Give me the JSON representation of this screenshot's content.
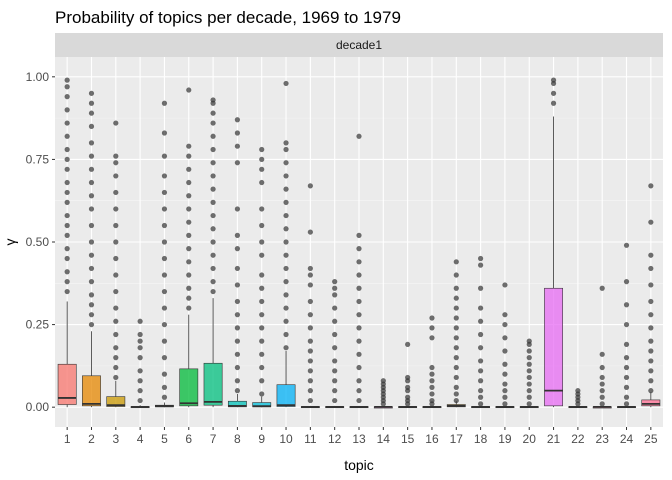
{
  "chart_data": {
    "type": "boxplot",
    "title": "Probability of topics per decade, 1969 to 1979",
    "facet_label": "decade1",
    "xlabel": "topic",
    "ylabel": "γ",
    "ylim": [
      0,
      1
    ],
    "y_ticks": [
      "0.00",
      "0.25",
      "0.50",
      "0.75",
      "1.00"
    ],
    "y_tick_values": [
      0,
      0.25,
      0.5,
      0.75,
      1.0
    ],
    "grid": true,
    "categories": [
      "1",
      "2",
      "3",
      "4",
      "5",
      "6",
      "7",
      "8",
      "9",
      "10",
      "11",
      "12",
      "13",
      "14",
      "15",
      "16",
      "17",
      "18",
      "19",
      "20",
      "21",
      "22",
      "23",
      "24",
      "25"
    ],
    "boxes": [
      {
        "topic": "1",
        "color": "#F8766D",
        "q1": 0.008,
        "median": 0.028,
        "q3": 0.13,
        "whisker_low": 0,
        "whisker_high": 0.32,
        "outliers": [
          0.35,
          0.38,
          0.41,
          0.45,
          0.48,
          0.52,
          0.55,
          0.58,
          0.62,
          0.65,
          0.68,
          0.72,
          0.75,
          0.78,
          0.82,
          0.86,
          0.9,
          0.94,
          0.97,
          0.99
        ]
      },
      {
        "topic": "2",
        "color": "#E58700",
        "q1": 0.004,
        "median": 0.01,
        "q3": 0.095,
        "whisker_low": 0,
        "whisker_high": 0.23,
        "outliers": [
          0.25,
          0.28,
          0.31,
          0.34,
          0.38,
          0.42,
          0.46,
          0.5,
          0.55,
          0.6,
          0.64,
          0.68,
          0.72,
          0.76,
          0.8,
          0.85,
          0.89,
          0.92,
          0.95
        ]
      },
      {
        "topic": "3",
        "color": "#C99800",
        "q1": 0.002,
        "median": 0.006,
        "q3": 0.032,
        "whisker_low": 0,
        "whisker_high": 0.08,
        "outliers": [
          0.09,
          0.12,
          0.15,
          0.18,
          0.22,
          0.26,
          0.3,
          0.35,
          0.4,
          0.45,
          0.5,
          0.55,
          0.6,
          0.65,
          0.7,
          0.74,
          0.76,
          0.86
        ]
      },
      {
        "topic": "4",
        "color": "#A3A500",
        "q1": 0,
        "median": 0.001,
        "q3": 0.002,
        "whisker_low": 0,
        "whisker_high": 0.006,
        "outliers": [
          0.02,
          0.05,
          0.08,
          0.11,
          0.15,
          0.18,
          0.2,
          0.22,
          0.26
        ]
      },
      {
        "topic": "5",
        "color": "#6BB100",
        "q1": 0.001,
        "median": 0.003,
        "q3": 0.006,
        "whisker_low": 0,
        "whisker_high": 0.014,
        "outliers": [
          0.03,
          0.06,
          0.1,
          0.15,
          0.2,
          0.25,
          0.3,
          0.35,
          0.4,
          0.45,
          0.5,
          0.55,
          0.6,
          0.65,
          0.7,
          0.76,
          0.83,
          0.92
        ]
      },
      {
        "topic": "6",
        "color": "#00BA38",
        "q1": 0.004,
        "median": 0.012,
        "q3": 0.116,
        "whisker_low": 0,
        "whisker_high": 0.28,
        "outliers": [
          0.3,
          0.33,
          0.36,
          0.4,
          0.44,
          0.48,
          0.52,
          0.56,
          0.6,
          0.64,
          0.68,
          0.72,
          0.76,
          0.79,
          0.96
        ]
      },
      {
        "topic": "7",
        "color": "#00BF7D",
        "q1": 0.006,
        "median": 0.016,
        "q3": 0.133,
        "whisker_low": 0,
        "whisker_high": 0.33,
        "outliers": [
          0.35,
          0.38,
          0.42,
          0.46,
          0.5,
          0.54,
          0.58,
          0.62,
          0.66,
          0.7,
          0.74,
          0.78,
          0.82,
          0.86,
          0.89,
          0.92,
          0.93
        ]
      },
      {
        "topic": "8",
        "color": "#00C0B8",
        "q1": 0.001,
        "median": 0.004,
        "q3": 0.018,
        "whisker_low": 0,
        "whisker_high": 0.04,
        "outliers": [
          0.05,
          0.08,
          0.12,
          0.16,
          0.2,
          0.24,
          0.28,
          0.32,
          0.37,
          0.42,
          0.48,
          0.52,
          0.6,
          0.74,
          0.79,
          0.83,
          0.87
        ]
      },
      {
        "topic": "9",
        "color": "#00BCD8",
        "q1": 0.001,
        "median": 0.003,
        "q3": 0.014,
        "whisker_low": 0,
        "whisker_high": 0.032,
        "outliers": [
          0.04,
          0.08,
          0.12,
          0.16,
          0.2,
          0.24,
          0.28,
          0.32,
          0.36,
          0.4,
          0.46,
          0.5,
          0.55,
          0.6,
          0.68,
          0.72,
          0.75,
          0.78
        ]
      },
      {
        "topic": "10",
        "color": "#00B0F6",
        "q1": 0.002,
        "median": 0.006,
        "q3": 0.068,
        "whisker_low": 0,
        "whisker_high": 0.17,
        "outliers": [
          0.18,
          0.22,
          0.26,
          0.3,
          0.34,
          0.38,
          0.42,
          0.46,
          0.5,
          0.54,
          0.58,
          0.62,
          0.66,
          0.7,
          0.74,
          0.78,
          0.8,
          0.98
        ]
      },
      {
        "topic": "11",
        "color": "#619CFF",
        "q1": 0,
        "median": 0.001,
        "q3": 0.002,
        "whisker_low": 0,
        "whisker_high": 0.004,
        "outliers": [
          0.02,
          0.05,
          0.08,
          0.11,
          0.14,
          0.17,
          0.2,
          0.24,
          0.28,
          0.32,
          0.37,
          0.4,
          0.42,
          0.53,
          0.67
        ]
      },
      {
        "topic": "12",
        "color": "#B983FF",
        "q1": 0,
        "median": 0.001,
        "q3": 0.002,
        "whisker_low": 0,
        "whisker_high": 0.004,
        "outliers": [
          0.02,
          0.05,
          0.08,
          0.11,
          0.14,
          0.18,
          0.22,
          0.26,
          0.3,
          0.34,
          0.36,
          0.38
        ]
      },
      {
        "topic": "13",
        "color": "#E76BF3",
        "q1": 0,
        "median": 0.001,
        "q3": 0.002,
        "whisker_low": 0,
        "whisker_high": 0.004,
        "outliers": [
          0.02,
          0.05,
          0.08,
          0.12,
          0.16,
          0.2,
          0.24,
          0.28,
          0.32,
          0.36,
          0.4,
          0.44,
          0.48,
          0.52,
          0.82
        ]
      },
      {
        "topic": "14",
        "color": "#FD61D1",
        "q1": 0,
        "median": 0.001,
        "q3": 0.001,
        "whisker_low": 0,
        "whisker_high": 0.003,
        "outliers": [
          0.01,
          0.02,
          0.03,
          0.04,
          0.05,
          0.06,
          0.07,
          0.08
        ]
      },
      {
        "topic": "15",
        "color": "#FF67A4",
        "q1": 0,
        "median": 0.001,
        "q3": 0.002,
        "whisker_low": 0,
        "whisker_high": 0.004,
        "outliers": [
          0.01,
          0.02,
          0.03,
          0.05,
          0.06,
          0.08,
          0.09,
          0.19
        ]
      },
      {
        "topic": "16",
        "color": "#F8766D",
        "q1": 0,
        "median": 0.001,
        "q3": 0.002,
        "whisker_low": 0,
        "whisker_high": 0.004,
        "outliers": [
          0.01,
          0.02,
          0.04,
          0.06,
          0.08,
          0.1,
          0.12,
          0.21,
          0.24,
          0.27
        ]
      },
      {
        "topic": "17",
        "color": "#D89000",
        "q1": 0.001,
        "median": 0.004,
        "q3": 0.008,
        "whisker_low": 0,
        "whisker_high": 0.018,
        "outliers": [
          0.02,
          0.04,
          0.06,
          0.09,
          0.12,
          0.15,
          0.18,
          0.21,
          0.24,
          0.27,
          0.3,
          0.33,
          0.36,
          0.4,
          0.44
        ]
      },
      {
        "topic": "18",
        "color": "#A3A500",
        "q1": 0,
        "median": 0.001,
        "q3": 0.002,
        "whisker_low": 0,
        "whisker_high": 0.004,
        "outliers": [
          0.01,
          0.03,
          0.05,
          0.08,
          0.11,
          0.14,
          0.18,
          0.22,
          0.26,
          0.3,
          0.36,
          0.43,
          0.45
        ]
      },
      {
        "topic": "19",
        "color": "#39B600",
        "q1": 0,
        "median": 0.001,
        "q3": 0.002,
        "whisker_low": 0,
        "whisker_high": 0.004,
        "outliers": [
          0.01,
          0.03,
          0.05,
          0.07,
          0.1,
          0.13,
          0.17,
          0.21,
          0.25,
          0.28,
          0.37
        ]
      },
      {
        "topic": "20",
        "color": "#00BF7D",
        "q1": 0,
        "median": 0.001,
        "q3": 0.002,
        "whisker_low": 0,
        "whisker_high": 0.004,
        "outliers": [
          0.01,
          0.03,
          0.05,
          0.07,
          0.09,
          0.11,
          0.13,
          0.15,
          0.17,
          0.19,
          0.2
        ]
      },
      {
        "topic": "21",
        "color": "#E76BF3",
        "q1": 0.004,
        "median": 0.05,
        "q3": 0.36,
        "whisker_low": 0,
        "whisker_high": 0.88,
        "outliers": [
          0.92,
          0.95,
          0.98,
          0.99
        ]
      },
      {
        "topic": "22",
        "color": "#FF62BC",
        "q1": 0,
        "median": 0.001,
        "q3": 0.002,
        "whisker_low": 0,
        "whisker_high": 0.004,
        "outliers": [
          0.01,
          0.02,
          0.03,
          0.04,
          0.05
        ]
      },
      {
        "topic": "23",
        "color": "#FF6C91",
        "q1": 0,
        "median": 0.001,
        "q3": 0.001,
        "whisker_low": 0,
        "whisker_high": 0.003,
        "outliers": [
          0.01,
          0.03,
          0.05,
          0.07,
          0.09,
          0.12,
          0.16,
          0.36
        ]
      },
      {
        "topic": "24",
        "color": "#F8766D",
        "q1": 0,
        "median": 0.001,
        "q3": 0.002,
        "whisker_low": 0,
        "whisker_high": 0.004,
        "outliers": [
          0.01,
          0.03,
          0.06,
          0.09,
          0.12,
          0.15,
          0.19,
          0.25,
          0.31,
          0.38,
          0.49
        ]
      },
      {
        "topic": "25",
        "color": "#FF6C91",
        "q1": 0.004,
        "median": 0.01,
        "q3": 0.022,
        "whisker_low": 0,
        "whisker_high": 0.045,
        "outliers": [
          0.05,
          0.08,
          0.11,
          0.14,
          0.17,
          0.2,
          0.24,
          0.28,
          0.32,
          0.37,
          0.42,
          0.46,
          0.56,
          0.67
        ]
      }
    ]
  }
}
